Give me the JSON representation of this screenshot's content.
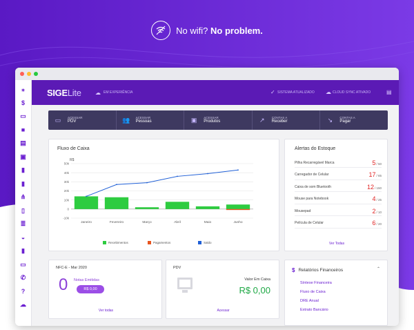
{
  "hero": {
    "text_light": "No wifi?",
    "text_bold": "No problem."
  },
  "window_dots": [
    "#ff5f56",
    "#ffbd2e",
    "#27c93f"
  ],
  "topbar": {
    "logo_main": "SIGE",
    "logo_sub": "Lite",
    "env": "EM EXPERIÊNCIA",
    "status1": "SISTEMA ATUALIZADO",
    "status2": "CLOUD SYNC ATIVADO"
  },
  "sidebar_icons": [
    "spinner-icon",
    "dollar-icon",
    "store-icon",
    "bag-icon",
    "products-icon",
    "gift-icon",
    "document-icon",
    "document-icon",
    "network-icon",
    "clipboard-icon",
    "list-icon",
    "basket-icon",
    "document-icon",
    "monitor-icon",
    "phone-icon",
    "help-icon",
    "cloud-icon"
  ],
  "quick_actions": [
    {
      "top": "ACESSAR",
      "main": "PDV",
      "icon": "monitor-icon"
    },
    {
      "top": "ACESSAR",
      "main": "Pessoas",
      "icon": "users-icon"
    },
    {
      "top": "ACESSAR",
      "main": "Produtos",
      "icon": "box-icon"
    },
    {
      "top": "CONTAS A",
      "main": "Receber",
      "icon": "trend-up-icon"
    },
    {
      "top": "CONTAS A",
      "main": "Pagar",
      "icon": "trend-down-icon"
    }
  ],
  "cash_flow": {
    "title": "Fluxo de Caixa"
  },
  "chart_data": {
    "type": "bar",
    "title": "Fluxo de Caixa",
    "ylabel": "R$",
    "categories": [
      "Janeiro",
      "Fevereiro",
      "Março",
      "Abril",
      "Maio",
      "Junho"
    ],
    "ylim": [
      -10,
      50
    ],
    "yticks": [
      -10,
      0,
      10,
      20,
      30,
      40,
      50
    ],
    "ytick_labels": [
      "-10k",
      "0",
      "10k",
      "20k",
      "30k",
      "40k",
      "50k"
    ],
    "grid": true,
    "legend_position": "bottom",
    "series": [
      {
        "name": "Recebimentos",
        "type": "bar",
        "color": "#2ecc40",
        "values": [
          14,
          13,
          2,
          8,
          3,
          5
        ]
      },
      {
        "name": "Pagamentos",
        "type": "bar",
        "color": "#e8541e",
        "values": [
          0,
          0,
          0,
          0,
          0,
          -1
        ]
      },
      {
        "name": "Saldo",
        "type": "line",
        "color": "#1f5fd6",
        "values": [
          14,
          27,
          29,
          36,
          39,
          43
        ]
      }
    ]
  },
  "stock_alerts": {
    "title": "Alertas do Estoque",
    "items": [
      {
        "name": "Pilha Recarregável Marca",
        "current": "5",
        "max": "/ 50"
      },
      {
        "name": "Carregador de Celular",
        "current": "17",
        "max": "/ 65"
      },
      {
        "name": "Caixa de som Bluetooth",
        "current": "12",
        "max": "/ 150"
      },
      {
        "name": "Mouse para Notebook",
        "current": "4",
        "max": "/ 25"
      },
      {
        "name": "Mousepad",
        "current": "2",
        "max": "/ 10"
      },
      {
        "name": "Película de Celular",
        "current": "6",
        "max": "/ 20"
      }
    ],
    "see_all": "Ver Todas"
  },
  "nfce": {
    "title": "NFC-E - Mar 2020",
    "count": "0",
    "label": "Notas Emitidas",
    "amount": "R$ 0,00",
    "see_all": "Ver todas"
  },
  "pdv": {
    "title": "PDV",
    "label": "Valor Em Caixa",
    "value": "R$ 0,00",
    "link": "Acessar"
  },
  "reports": {
    "title": "Relatórios Financeiros",
    "items": [
      "Síntese Financeira",
      "Fluxo de Caixa",
      "DRE Anual",
      "Extrato Bancário"
    ]
  }
}
